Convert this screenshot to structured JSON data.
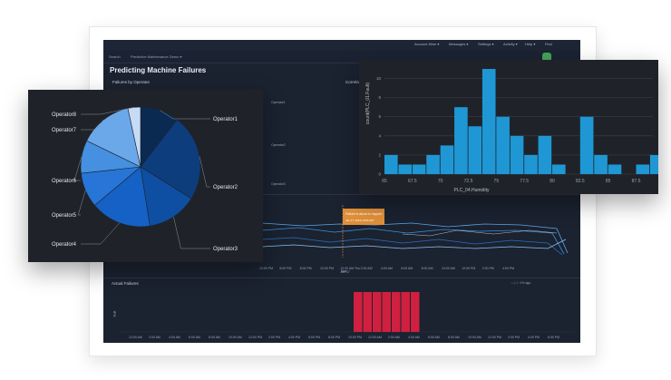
{
  "topnav": {
    "items": [
      "Account Mine ▾",
      "Messages ▾",
      "Settings ▾",
      "Activity ▾",
      "Help ▾",
      "Find"
    ]
  },
  "appbar": {
    "items": [
      "Search",
      "Predictive Maintenance Demo ▾"
    ]
  },
  "dashboard": {
    "title": "Predicting Machine Failures",
    "panel_failures_by_operator": "Failures by Operator",
    "panel_correlation": "Correlation",
    "operator_legend": [
      "Operator1",
      "Operator2",
      "Operator3"
    ],
    "tooltip_title": "Failure is about to happen",
    "tooltip_sub": "Jan 17, 2019 10:05 AM",
    "timeline_ticks": [
      "12:00 PM",
      "6:00 PM",
      "8:00 PM",
      "10:00 PM",
      "12:00 AM Thu Jan 17",
      "2:00 AM",
      "4:00 AM",
      "6:00 AM",
      "8:00 AM",
      "10:00 AM",
      "12:00 PM",
      "2:00 PM",
      "4:00 PM"
    ],
    "timeline_axis": "time",
    "actual_failures_title": "Actual Failures",
    "actual_failures_ylabel": "fault",
    "bottom_ticks": [
      "12:00 AM",
      "2:00 AM",
      "4:00 AM",
      "6:00 AM",
      "8:00 AM",
      "10:00 AM",
      "12:00 PM",
      "2:00 PM",
      "4:00 PM",
      "6:00 PM",
      "8:00 PM",
      "10:00 PM",
      "12:00 AM",
      "2:00 AM",
      "4:00 AM",
      "6:00 AM",
      "8:00 AM",
      "10:00 AM",
      "12:00 PM",
      "2:00 PM",
      "4:00 PM",
      "6:00 PM"
    ],
    "toolbar_label": "1% ago",
    "failure_bar_count": 7,
    "colors": {
      "bg": "#1b2230",
      "bar_red": "#d0203f",
      "line_blue": "#3d8fd8",
      "tooltip": "#e0903a"
    }
  },
  "pie_card": {
    "title": "",
    "chart_data": {
      "type": "pie",
      "labels": [
        "Operator1",
        "Operator2",
        "Operator3",
        "Operator4",
        "Operator5",
        "Operator6",
        "Operator7",
        "Operator8"
      ],
      "values": [
        10.5,
        23.4,
        13.6,
        16.4,
        9.4,
        8.9,
        14.4,
        3.4
      ],
      "colors": [
        "#0b2a52",
        "#0d3d7d",
        "#0e4fa3",
        "#1561c5",
        "#2775d6",
        "#4590e0",
        "#6aa8ea",
        "#c6dcf6"
      ]
    }
  },
  "hist_card": {
    "chart_data": {
      "type": "bar",
      "title": "",
      "xlabel": "PLC_04.Humidity",
      "ylabel": "count(PLC_01.Fault)",
      "bin_start": 65,
      "bin_width": 1.25,
      "values": [
        2,
        1,
        1,
        2,
        3,
        7,
        5,
        11,
        6,
        4,
        2,
        4,
        1,
        0,
        6,
        2,
        1,
        0,
        1,
        2,
        0,
        1,
        0,
        1,
        1,
        0,
        1,
        1,
        1
      ],
      "xticks": [
        "65",
        "67.5",
        "70",
        "72.5",
        "75",
        "77.5",
        "80",
        "82.5",
        "85",
        "87.5"
      ],
      "yticks": [
        "0",
        "2",
        "4",
        "6",
        "8",
        "10"
      ],
      "ylim": [
        0,
        11
      ],
      "xlim": [
        65,
        89
      ]
    }
  }
}
